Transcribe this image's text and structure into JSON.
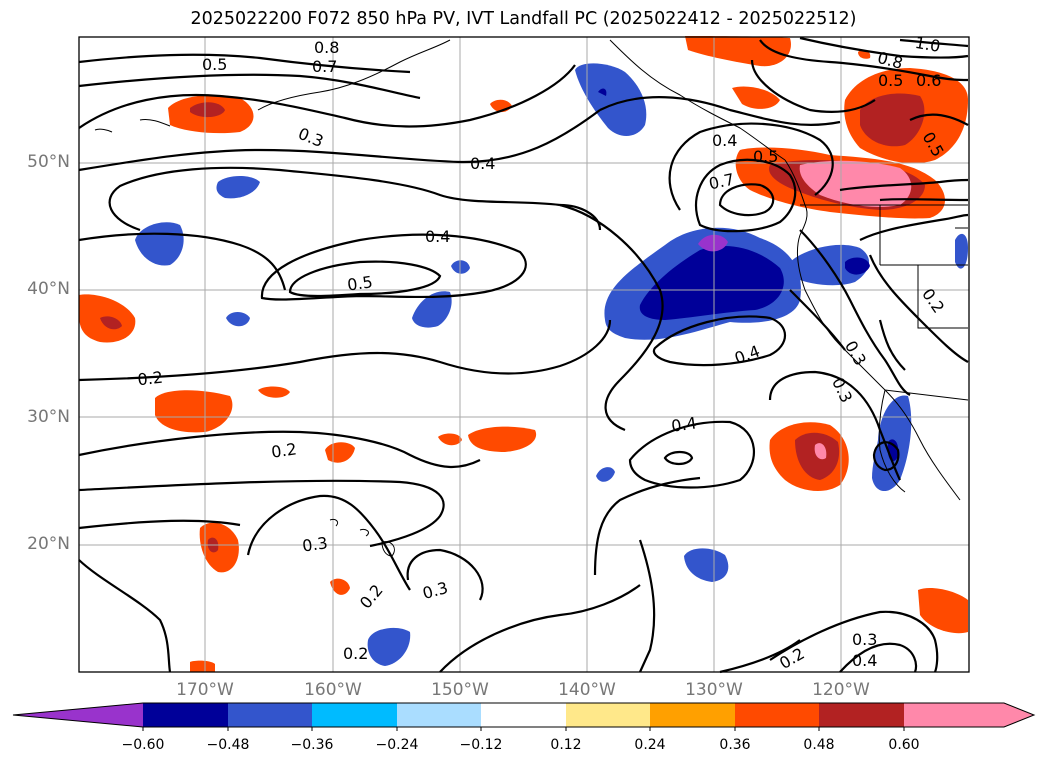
{
  "title": "2025022200 F072 850 hPa PV, IVT Landfall PC (2025022412 - 2025022512)",
  "axes": {
    "lat_labels": [
      "50°N",
      "40°N",
      "30°N",
      "20°N"
    ],
    "lon_labels": [
      "170°W",
      "160°W",
      "150°W",
      "140°W",
      "130°W",
      "120°W"
    ]
  },
  "contour_labels": [
    "0.5",
    "0.7",
    "0.8",
    "0.3",
    "0.4",
    "0.4",
    "0.5",
    "0.2",
    "0.2",
    "0.3",
    "0.2",
    "0.3",
    "0.2",
    "0.4",
    "0.4",
    "0.7",
    "0.5",
    "0.4",
    "0.3",
    "0.3",
    "0.2",
    "1.0",
    "0.8",
    "0.5",
    "0.6",
    "0.5",
    "0.2",
    "0.3",
    "0.4"
  ],
  "colorbar": {
    "ticks": [
      "−0.60",
      "−0.48",
      "−0.36",
      "−0.24",
      "−0.12",
      "0.12",
      "0.24",
      "0.36",
      "0.48",
      "0.60"
    ],
    "colors": [
      "#9933cc",
      "#000099",
      "#3355cc",
      "#00bbff",
      "#aaddff",
      "#ffffff",
      "#ffe88a",
      "#ffa000",
      "#ff4a00",
      "#b22222",
      "#ff88aa",
      "#ff88aa"
    ]
  },
  "legend_colors": {
    "contour": "#000000",
    "coast": "#000000",
    "grid": "#aaaaaa"
  }
}
